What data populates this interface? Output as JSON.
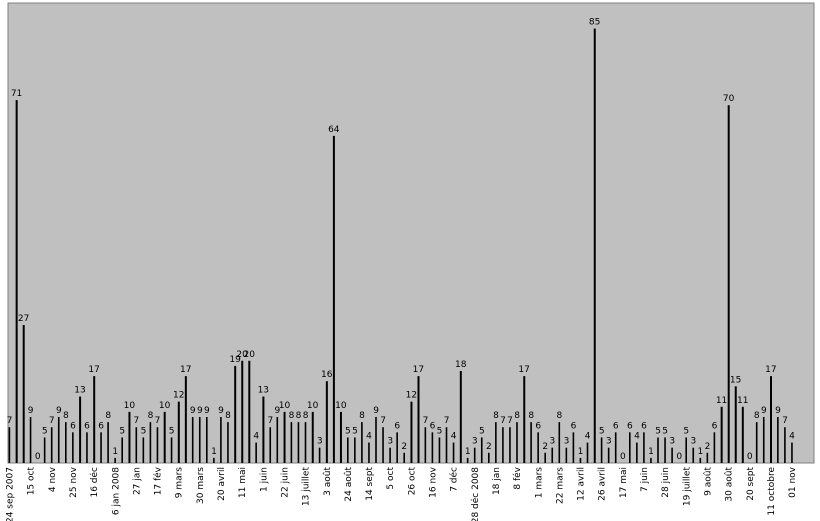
{
  "chart_data": {
    "type": "bar",
    "title": "",
    "xlabel": "",
    "ylabel": "",
    "ylim": [
      0,
      90
    ],
    "grid": false,
    "legend": "none",
    "colors": {
      "plot_bg": "#c0c0c0",
      "bar": "#000000",
      "frame": "#808080",
      "page": "#ffffff"
    },
    "values": [
      7,
      71,
      27,
      9,
      0,
      5,
      7,
      9,
      8,
      6,
      13,
      6,
      17,
      6,
      8,
      1,
      5,
      10,
      7,
      5,
      8,
      7,
      10,
      5,
      12,
      17,
      9,
      9,
      9,
      1,
      9,
      8,
      19,
      20,
      20,
      4,
      13,
      7,
      9,
      10,
      8,
      8,
      8,
      10,
      3,
      16,
      64,
      10,
      5,
      5,
      8,
      4,
      9,
      7,
      3,
      6,
      2,
      12,
      17,
      7,
      6,
      5,
      7,
      4,
      18,
      1,
      3,
      5,
      2,
      8,
      7,
      7,
      8,
      17,
      8,
      6,
      2,
      3,
      8,
      3,
      6,
      1,
      4,
      85,
      5,
      3,
      6,
      0,
      6,
      4,
      6,
      1,
      5,
      5,
      3,
      0,
      5,
      3,
      1,
      2,
      6,
      11,
      70,
      15,
      11,
      0,
      8,
      9,
      17,
      9,
      7,
      4
    ],
    "ticks": [
      {
        "i": 0,
        "label": "24 sep 2007"
      },
      {
        "i": 3,
        "label": "15 oct"
      },
      {
        "i": 6,
        "label": "4 nov"
      },
      {
        "i": 9,
        "label": "25 nov"
      },
      {
        "i": 12,
        "label": "16 déc"
      },
      {
        "i": 15,
        "label": "6 jan 2008"
      },
      {
        "i": 18,
        "label": "27 jan"
      },
      {
        "i": 21,
        "label": "17 fév"
      },
      {
        "i": 24,
        "label": "9 mars"
      },
      {
        "i": 27,
        "label": "30 mars"
      },
      {
        "i": 30,
        "label": "20 avril"
      },
      {
        "i": 33,
        "label": "11 mai"
      },
      {
        "i": 36,
        "label": "1 juin"
      },
      {
        "i": 39,
        "label": "22 juin"
      },
      {
        "i": 42,
        "label": "13 juillet"
      },
      {
        "i": 45,
        "label": "3 août"
      },
      {
        "i": 48,
        "label": "24 août"
      },
      {
        "i": 51,
        "label": "14 sept"
      },
      {
        "i": 54,
        "label": "5 oct"
      },
      {
        "i": 57,
        "label": "26 oct"
      },
      {
        "i": 60,
        "label": "16 nov"
      },
      {
        "i": 63,
        "label": "7 déc"
      },
      {
        "i": 66,
        "label": "28 déc 2008"
      },
      {
        "i": 69,
        "label": "18 jan"
      },
      {
        "i": 72,
        "label": "8 fév"
      },
      {
        "i": 75,
        "label": "1 mars"
      },
      {
        "i": 78,
        "label": "22 mars"
      },
      {
        "i": 81,
        "label": "12 avril"
      },
      {
        "i": 84,
        "label": "26 avril"
      },
      {
        "i": 87,
        "label": "17 mai"
      },
      {
        "i": 90,
        "label": "7 juin"
      },
      {
        "i": 93,
        "label": "28 juin"
      },
      {
        "i": 96,
        "label": "19 juillet"
      },
      {
        "i": 99,
        "label": "9 août"
      },
      {
        "i": 102,
        "label": "30 août"
      },
      {
        "i": 105,
        "label": "20 sept"
      },
      {
        "i": 108,
        "label": "11 octobre"
      },
      {
        "i": 111,
        "label": "01 nov"
      }
    ]
  }
}
